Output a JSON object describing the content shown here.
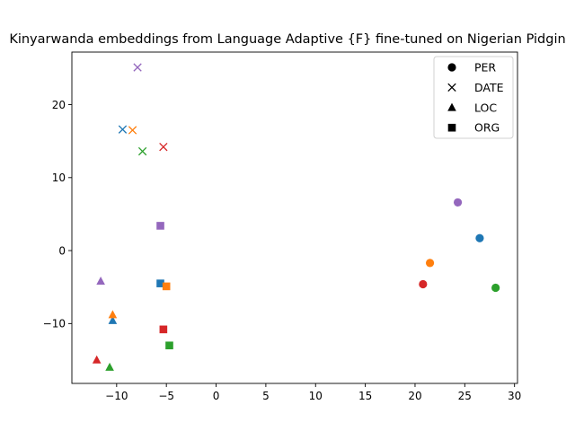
{
  "chart_data": {
    "type": "scatter",
    "title": "Kinyarwanda embeddings from Language Adaptive {F} fine-tuned on Nigerian Pidgin",
    "xlabel": "",
    "ylabel": "",
    "xlim": [
      -14.5,
      30.3
    ],
    "ylim": [
      -18.2,
      27.2
    ],
    "x_ticks": [
      -10,
      -5,
      0,
      5,
      10,
      15,
      20,
      25,
      30
    ],
    "y_ticks": [
      -10,
      0,
      10,
      20
    ],
    "grid": false,
    "legend_position": "top-right",
    "legend": [
      {
        "label": "PER",
        "marker": "circle"
      },
      {
        "label": "DATE",
        "marker": "x"
      },
      {
        "label": "LOC",
        "marker": "triangle"
      },
      {
        "label": "ORG",
        "marker": "square"
      }
    ],
    "series": [
      {
        "color": "#1f77b4",
        "points": [
          {
            "marker": "circle",
            "x": 26.5,
            "y": 1.7
          },
          {
            "marker": "x",
            "x": -9.4,
            "y": 16.6
          },
          {
            "marker": "triangle",
            "x": -10.4,
            "y": -9.6
          },
          {
            "marker": "square",
            "x": -5.6,
            "y": -4.5
          }
        ]
      },
      {
        "color": "#ff7f0e",
        "points": [
          {
            "marker": "circle",
            "x": 21.5,
            "y": -1.7
          },
          {
            "marker": "x",
            "x": -8.4,
            "y": 16.5
          },
          {
            "marker": "triangle",
            "x": -10.4,
            "y": -8.8
          },
          {
            "marker": "square",
            "x": -5.0,
            "y": -4.9
          }
        ]
      },
      {
        "color": "#2ca02c",
        "points": [
          {
            "marker": "circle",
            "x": 28.1,
            "y": -5.1
          },
          {
            "marker": "x",
            "x": -7.4,
            "y": 13.6
          },
          {
            "marker": "triangle",
            "x": -10.7,
            "y": -16.0
          },
          {
            "marker": "square",
            "x": -4.7,
            "y": -13.0
          }
        ]
      },
      {
        "color": "#d62728",
        "points": [
          {
            "marker": "circle",
            "x": 20.8,
            "y": -4.6
          },
          {
            "marker": "x",
            "x": -5.3,
            "y": 14.2
          },
          {
            "marker": "triangle",
            "x": -12.0,
            "y": -15.0
          },
          {
            "marker": "square",
            "x": -5.3,
            "y": -10.8
          }
        ]
      },
      {
        "color": "#9467bd",
        "points": [
          {
            "marker": "circle",
            "x": 24.3,
            "y": 6.6
          },
          {
            "marker": "x",
            "x": -7.9,
            "y": 25.1
          },
          {
            "marker": "triangle",
            "x": -11.6,
            "y": -4.2
          },
          {
            "marker": "square",
            "x": -5.6,
            "y": 3.4
          }
        ]
      }
    ]
  }
}
